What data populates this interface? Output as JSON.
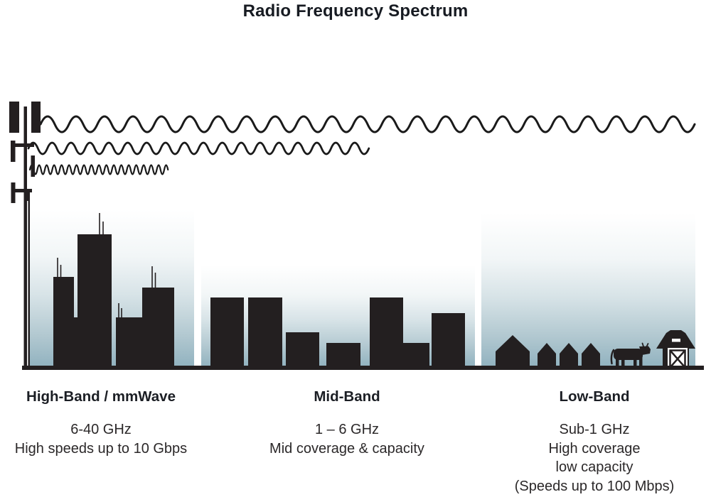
{
  "title": "Radio Frequency Spectrum",
  "bands": [
    {
      "heading": "High-Band / mmWave",
      "lines": [
        "6-40 GHz",
        "High speeds up to 10 Gbps"
      ]
    },
    {
      "heading": "Mid-Band",
      "lines": [
        "1 – 6 GHz",
        "Mid coverage & capacity"
      ]
    },
    {
      "heading": "Low-Band",
      "lines": [
        "Sub-1 GHz",
        "High coverage",
        "low capacity",
        "(Speeds up to 100 Mbps)"
      ]
    }
  ],
  "scene": {
    "icons": [
      "cell-tower-icon",
      "radio-wave-long-icon",
      "radio-wave-medium-icon",
      "radio-wave-short-icon",
      "city-skyscrapers-icon",
      "town-buildings-icon",
      "village-houses-icon",
      "cow-icon",
      "barn-icon",
      "ground-line"
    ]
  },
  "colors": {
    "ink": "#231f20",
    "wave_stroke": "#1a1a1a",
    "title_text": "#171b22",
    "body_text": "#2b2829",
    "sky_top": "#ffffff",
    "sky_mid": "#d7e3e7",
    "sky_bottom": "#92b3c0"
  }
}
